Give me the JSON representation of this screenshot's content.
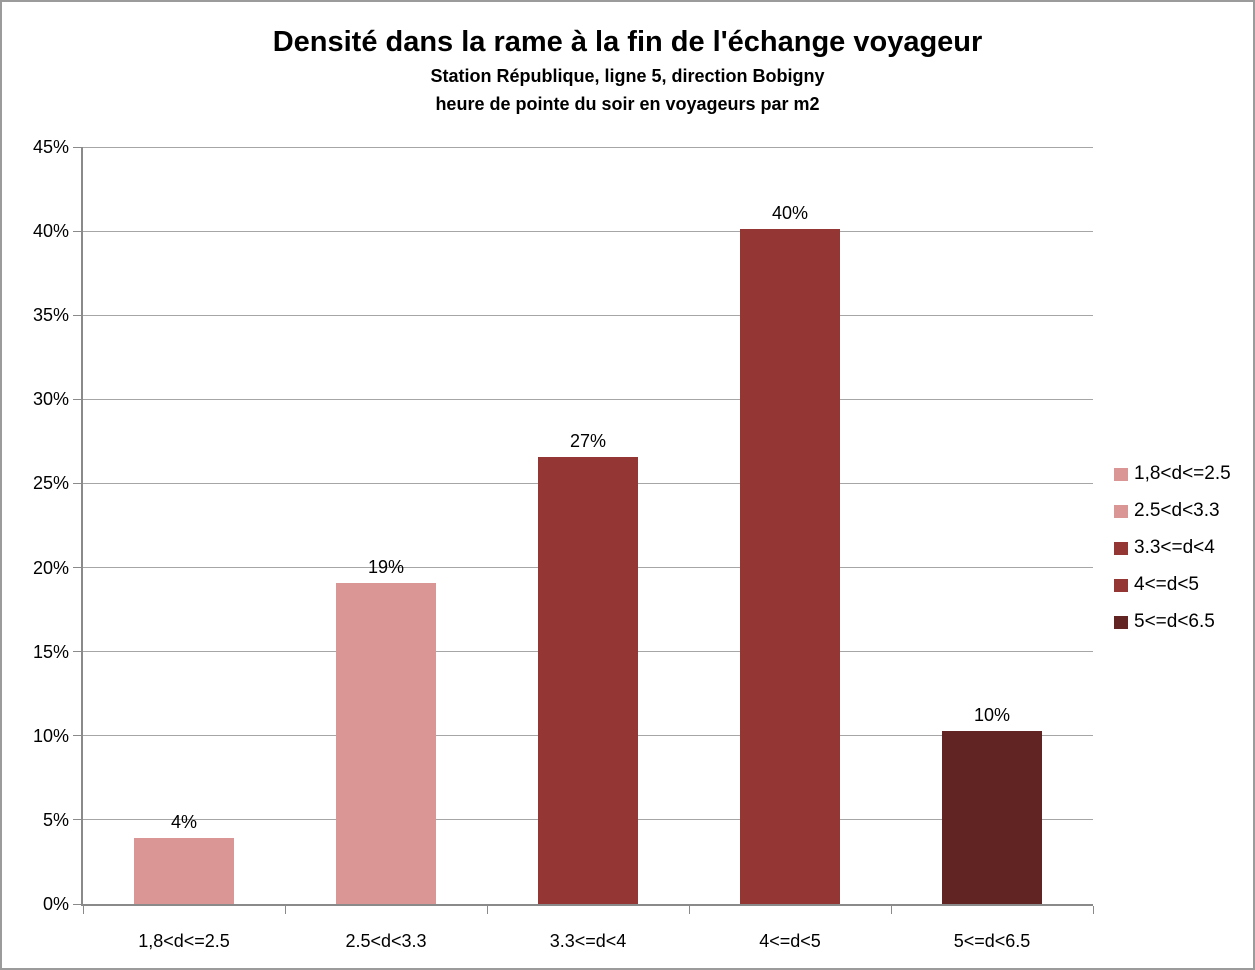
{
  "chart_data": {
    "type": "bar",
    "title": "Densité dans la rame à la fin de l'échange voyageur",
    "subtitle1": "Station République, ligne 5, direction Bobigny",
    "subtitle2": "heure de pointe du soir en voyageurs par m2",
    "xlabel": "",
    "ylabel": "",
    "ylim": [
      0,
      45
    ],
    "y_tick_step": 5,
    "y_tick_labels": [
      "0%",
      "5%",
      "10%",
      "15%",
      "20%",
      "25%",
      "30%",
      "35%",
      "40%",
      "45%"
    ],
    "grid": true,
    "legend_position": "right",
    "categories": [
      "1,8<d<=2.5",
      "2.5<d<3.3",
      "3.3<=d<4",
      "4<=d<5",
      "5<=d<6.5"
    ],
    "values": [
      3.9,
      19.1,
      26.6,
      40.1,
      10.3
    ],
    "value_labels": [
      "4%",
      "19%",
      "27%",
      "40%",
      "10%"
    ],
    "bar_colors": [
      "#d99694",
      "#d99694",
      "#943634",
      "#943634",
      "#622423"
    ],
    "legend_entries": [
      {
        "label": "1,8<d<=2.5",
        "color": "#d99694"
      },
      {
        "label": "2.5<d<3.3",
        "color": "#d99694"
      },
      {
        "label": "3.3<=d<4",
        "color": "#943634"
      },
      {
        "label": "4<=d<5",
        "color": "#943634"
      },
      {
        "label": "5<=d<6.5",
        "color": "#622423"
      }
    ],
    "colors": {
      "gridline": "#a6a6a6",
      "axis": "#8a8a8a",
      "frame_border": "#9b9b9b",
      "text": "#000000"
    }
  }
}
